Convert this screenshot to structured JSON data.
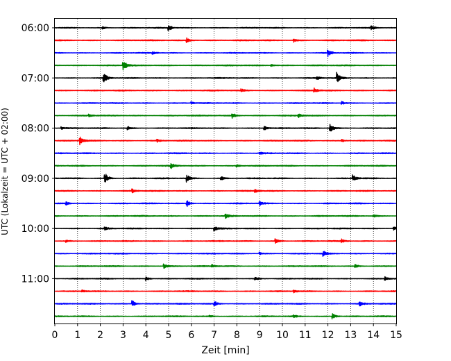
{
  "chart_data": {
    "type": "line",
    "title": "",
    "xlabel": "Zeit  [min]",
    "ylabel": "UTC (Lokalzeit = UTC + 02:00)",
    "xlim": [
      0,
      15
    ],
    "x_ticks": [
      0,
      1,
      2,
      3,
      4,
      5,
      6,
      7,
      8,
      9,
      10,
      11,
      12,
      13,
      14,
      15
    ],
    "x_tick_labels": [
      "0",
      "1",
      "2",
      "3",
      "4",
      "5",
      "6",
      "7",
      "8",
      "9",
      "10",
      "11",
      "12",
      "13",
      "14",
      "15"
    ],
    "y_tick_labels": [
      "06:00",
      "07:00",
      "08:00",
      "09:00",
      "10:00",
      "11:00"
    ],
    "grid": "vertical dotted at each minute",
    "legend": "none",
    "trace_interval_min": 15,
    "colors_cycle": [
      "#000000",
      "#ff0000",
      "#0000ff",
      "#008000"
    ],
    "traces": [
      {
        "start": "06:00",
        "color": "#000000",
        "events": [
          [
            5.0,
            1.0
          ],
          [
            13.9,
            0.8
          ],
          [
            2.1,
            0.4
          ]
        ]
      },
      {
        "start": "06:15",
        "color": "#ff0000",
        "events": [
          [
            5.8,
            0.8
          ],
          [
            10.5,
            0.6
          ]
        ]
      },
      {
        "start": "06:30",
        "color": "#0000ff",
        "events": [
          [
            12.0,
            1.2
          ],
          [
            4.3,
            0.4
          ]
        ]
      },
      {
        "start": "06:45",
        "color": "#008000",
        "events": [
          [
            3.0,
            2.0
          ],
          [
            9.5,
            0.4
          ]
        ]
      },
      {
        "start": "07:00",
        "color": "#000000",
        "events": [
          [
            2.15,
            1.8
          ],
          [
            12.4,
            2.0
          ],
          [
            11.5,
            0.6
          ]
        ]
      },
      {
        "start": "07:15",
        "color": "#ff0000",
        "events": [
          [
            11.4,
            0.8
          ],
          [
            8.2,
            0.5
          ]
        ]
      },
      {
        "start": "07:30",
        "color": "#0000ff",
        "events": [
          [
            12.6,
            0.6
          ],
          [
            6.0,
            0.4
          ]
        ]
      },
      {
        "start": "07:45",
        "color": "#008000",
        "events": [
          [
            7.8,
            0.8
          ],
          [
            10.7,
            0.7
          ],
          [
            1.5,
            0.4
          ]
        ]
      },
      {
        "start": "08:00",
        "color": "#000000",
        "events": [
          [
            12.1,
            1.6
          ],
          [
            9.2,
            0.8
          ],
          [
            3.2,
            0.6
          ],
          [
            0.3,
            0.5
          ]
        ]
      },
      {
        "start": "08:15",
        "color": "#ff0000",
        "events": [
          [
            1.1,
            1.3
          ],
          [
            12.6,
            0.5
          ],
          [
            4.5,
            0.4
          ]
        ]
      },
      {
        "start": "08:30",
        "color": "#0000ff",
        "events": [
          [
            9.0,
            0.4
          ]
        ]
      },
      {
        "start": "08:45",
        "color": "#008000",
        "events": [
          [
            5.1,
            1.0
          ],
          [
            8.0,
            0.5
          ]
        ]
      },
      {
        "start": "09:00",
        "color": "#000000",
        "events": [
          [
            2.2,
            2.0
          ],
          [
            5.8,
            1.2
          ],
          [
            13.1,
            1.1
          ],
          [
            7.3,
            0.6
          ]
        ]
      },
      {
        "start": "09:15",
        "color": "#ff0000",
        "events": [
          [
            3.4,
            0.6
          ],
          [
            8.8,
            0.5
          ]
        ]
      },
      {
        "start": "09:30",
        "color": "#0000ff",
        "events": [
          [
            5.8,
            1.1
          ],
          [
            0.5,
            0.5
          ],
          [
            9.0,
            0.6
          ]
        ]
      },
      {
        "start": "09:45",
        "color": "#008000",
        "events": [
          [
            7.5,
            0.7
          ],
          [
            14.0,
            0.4
          ]
        ]
      },
      {
        "start": "10:00",
        "color": "#000000",
        "events": [
          [
            7.0,
            0.8
          ],
          [
            14.9,
            0.6
          ],
          [
            2.2,
            0.5
          ]
        ]
      },
      {
        "start": "10:15",
        "color": "#ff0000",
        "events": [
          [
            9.7,
            0.7
          ],
          [
            12.6,
            0.6
          ],
          [
            0.5,
            0.4
          ]
        ]
      },
      {
        "start": "10:30",
        "color": "#0000ff",
        "events": [
          [
            11.8,
            0.8
          ],
          [
            9.0,
            0.5
          ]
        ]
      },
      {
        "start": "10:45",
        "color": "#008000",
        "events": [
          [
            4.8,
            0.8
          ],
          [
            13.2,
            0.6
          ],
          [
            6.9,
            0.5
          ]
        ]
      },
      {
        "start": "11:00",
        "color": "#000000",
        "events": [
          [
            4.0,
            0.7
          ],
          [
            14.5,
            0.6
          ],
          [
            8.8,
            0.6
          ]
        ]
      },
      {
        "start": "11:15",
        "color": "#ff0000",
        "events": [
          [
            10.5,
            0.5
          ],
          [
            1.2,
            0.4
          ]
        ]
      },
      {
        "start": "11:30",
        "color": "#0000ff",
        "events": [
          [
            3.4,
            1.2
          ],
          [
            7.0,
            1.0
          ],
          [
            13.4,
            1.0
          ]
        ]
      },
      {
        "start": "11:45",
        "color": "#008000",
        "events": [
          [
            12.2,
            1.0
          ],
          [
            6.8,
            0.4
          ],
          [
            10.5,
            0.4
          ]
        ]
      }
    ]
  }
}
